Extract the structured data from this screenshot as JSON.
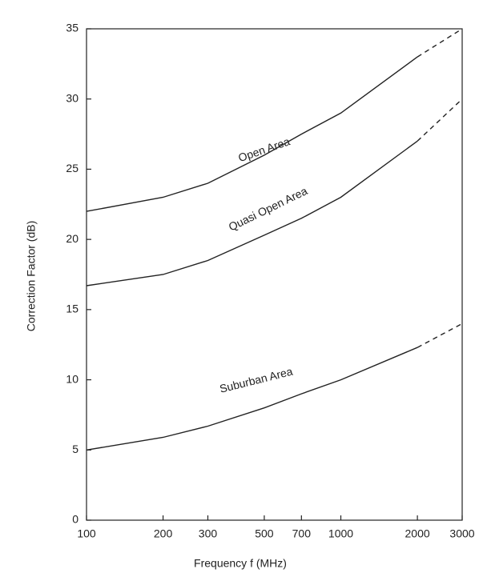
{
  "chart_data": {
    "type": "line",
    "x_label": "Frequency f (MHz)",
    "y_label": "Correction Factor (dB)",
    "x": [
      100,
      200,
      300,
      500,
      700,
      1000,
      2000,
      3000
    ],
    "xscale": "log",
    "xlim": [
      100,
      3000
    ],
    "xticks": [
      100,
      200,
      300,
      500,
      700,
      1000,
      2000,
      3000
    ],
    "ylim": [
      0,
      35
    ],
    "yticks": [
      0,
      5,
      10,
      15,
      20,
      25,
      30,
      35
    ],
    "dashed_from_x": 2000,
    "color": "#222222",
    "series": [
      {
        "name": "Open Area",
        "values": [
          22,
          23,
          24,
          26,
          27.5,
          29,
          33,
          35
        ]
      },
      {
        "name": "Quasi Open Area",
        "values": [
          16.7,
          17.5,
          18.5,
          20.3,
          21.5,
          23,
          27,
          30
        ]
      },
      {
        "name": "Suburban Area",
        "values": [
          5,
          5.9,
          6.7,
          8,
          9,
          10,
          12.3,
          14
        ]
      }
    ]
  }
}
